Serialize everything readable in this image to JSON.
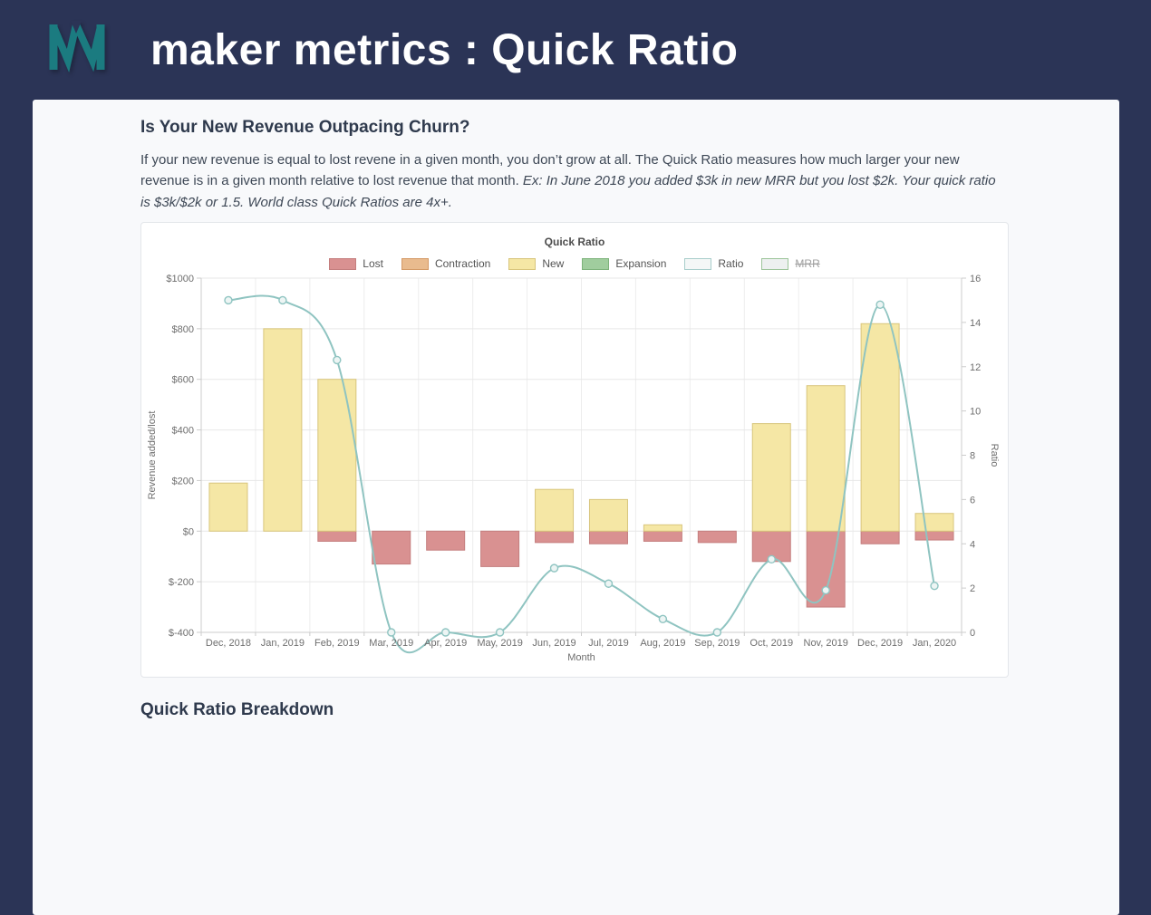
{
  "brand": {
    "logo_name": "maker-metrics-logo",
    "navy": "#2b3456",
    "teal": "#1b7b80"
  },
  "header": {
    "title": "maker metrics : Quick Ratio"
  },
  "intro": {
    "heading": "Is Your New Revenue Outpacing Churn?",
    "body_normal": "If your new revenue is equal to lost revene in a given month, you don’t grow at all. The Quick Ratio measures how much larger your new revenue is in a given month relative to lost revenue that month. ",
    "body_italic": "Ex: In June 2018 you added $3k in new MRR but you lost $2k. Your quick ratio is $3k/$2k or 1.5. World class Quick Ratios are 4x+."
  },
  "breakdown": {
    "heading": "Quick Ratio Breakdown"
  },
  "chart_data": {
    "type": "bar+line",
    "title": "Quick Ratio",
    "xlabel": "Month",
    "categories": [
      "Dec, 2018",
      "Jan, 2019",
      "Feb, 2019",
      "Mar, 2019",
      "Apr, 2019",
      "May, 2019",
      "Jun, 2019",
      "Jul, 2019",
      "Aug, 2019",
      "Sep, 2019",
      "Oct, 2019",
      "Nov, 2019",
      "Dec, 2019",
      "Jan, 2020"
    ],
    "axes": {
      "left": {
        "title": "Revenue added/lost",
        "range": [
          -400,
          1000
        ],
        "ticks": [
          1000,
          800,
          600,
          400,
          200,
          0,
          -200,
          -400
        ],
        "labels": [
          "$1000",
          "$800",
          "$600",
          "$400",
          "$200",
          "$0",
          "$-200",
          "$-400"
        ]
      },
      "right": {
        "title": "Ratio",
        "range": [
          0,
          16
        ],
        "ticks": [
          16,
          14,
          12,
          10,
          8,
          6,
          4,
          2,
          0
        ],
        "labels": [
          "16",
          "14",
          "12",
          "10",
          "8",
          "6",
          "4",
          "2",
          "0"
        ]
      }
    },
    "legend": [
      {
        "label": "Lost",
        "fill": "#d99191",
        "border": "#c47e7e",
        "disabled": false
      },
      {
        "label": "Contraction",
        "fill": "#e9bb8e",
        "border": "#d49a66",
        "disabled": false
      },
      {
        "label": "New",
        "fill": "#f5e7a5",
        "border": "#d8c57c",
        "disabled": false
      },
      {
        "label": "Expansion",
        "fill": "#a0cd9e",
        "border": "#7db37b",
        "disabled": false
      },
      {
        "label": "Ratio",
        "fill": "#f4f7f7",
        "border": "#a8cdcb",
        "disabled": false
      },
      {
        "label": "MRR",
        "fill": "#edf0f0",
        "border": "#9cc49a",
        "disabled": true
      }
    ],
    "series": [
      {
        "name": "Lost",
        "type": "bar",
        "axis": "left",
        "fill": "#d99191",
        "stroke": "#c47e7e",
        "values": [
          0,
          0,
          -40,
          -130,
          -75,
          -140,
          -45,
          -50,
          -40,
          -45,
          -120,
          -300,
          -50,
          -35
        ]
      },
      {
        "name": "New",
        "type": "bar",
        "axis": "left",
        "fill": "#f5e7a5",
        "stroke": "#d8c57c",
        "values": [
          190,
          800,
          600,
          0,
          0,
          0,
          165,
          125,
          25,
          0,
          425,
          575,
          820,
          70
        ]
      },
      {
        "name": "Ratio",
        "type": "line",
        "axis": "right",
        "stroke": "#8fc4c1",
        "marker_fill": "#edf5f4",
        "values": [
          15,
          15,
          12.3,
          0,
          0,
          0,
          2.9,
          2.2,
          0.6,
          0,
          3.3,
          1.9,
          14.8,
          2.1
        ]
      }
    ],
    "style": {
      "grid": "#e7e7e7",
      "vgrid": "#ededed",
      "axis_line": "#cccccc",
      "tick_label": "#6e6e6e"
    },
    "layout": {
      "grid_on": true,
      "legend_position": "top-center"
    }
  }
}
